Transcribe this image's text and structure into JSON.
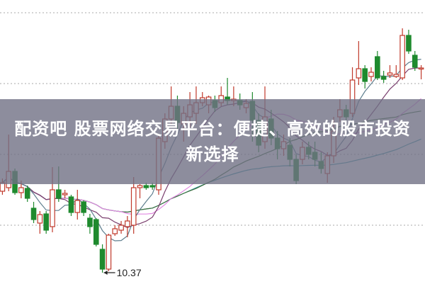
{
  "headline": "配资吧 股票网络交易平台：便捷、高效的股市投资新选择",
  "chart_data": {
    "type": "candlestick",
    "ylim": [
      10.21,
      14.22
    ],
    "grid": {
      "horizontal": true,
      "style": "dotted",
      "levels": [
        14.04,
        13.04,
        12.04,
        11.04
      ]
    },
    "colors": {
      "up": "#c0392b",
      "down": "#1f8a2e",
      "ma5": "#5f7f8f",
      "ma10": "#7a3f6e",
      "ma20": "#e28ae2",
      "ma30": "#3b6e3b",
      "ma60": "#3a9aa8"
    },
    "moving_averages": [
      5,
      10,
      20,
      30,
      60
    ],
    "low_annotation": {
      "label": "10.37",
      "index": 16,
      "value": 10.37
    },
    "candles": [
      [
        11.52,
        11.64,
        11.7,
        11.47
      ],
      [
        11.57,
        11.8,
        12.32,
        11.52
      ],
      [
        11.8,
        11.5,
        11.84,
        11.47
      ],
      [
        11.5,
        11.57,
        11.67,
        11.42
      ],
      [
        11.56,
        11.42,
        11.6,
        11.37
      ],
      [
        11.28,
        11.12,
        11.37,
        11.07
      ],
      [
        11.07,
        11.19,
        11.24,
        10.92
      ],
      [
        11.2,
        10.97,
        11.24,
        10.92
      ],
      [
        11.02,
        11.54,
        11.86,
        10.94
      ],
      [
        11.54,
        11.42,
        11.87,
        11.37
      ],
      [
        11.47,
        11.49,
        11.54,
        11.42
      ],
      [
        11.44,
        11.22,
        11.47,
        11.17
      ],
      [
        11.22,
        11.39,
        11.54,
        11.12
      ],
      [
        11.37,
        11.22,
        11.39,
        11.17
      ],
      [
        11.14,
        11.02,
        11.2,
        10.92
      ],
      [
        11.12,
        10.77,
        11.14,
        10.74
      ],
      [
        10.7,
        10.42,
        10.77,
        10.37
      ],
      [
        10.42,
        10.9,
        10.92,
        10.39
      ],
      [
        10.92,
        10.99,
        11.04,
        10.89
      ],
      [
        10.97,
        11.04,
        11.1,
        10.92
      ],
      [
        11.02,
        11.1,
        11.17,
        10.87
      ],
      [
        11.04,
        11.57,
        11.72,
        10.92
      ],
      [
        11.57,
        11.6,
        11.62,
        11.42
      ],
      [
        11.6,
        11.57,
        11.64,
        11.54
      ],
      [
        11.6,
        11.58,
        11.64,
        11.54
      ],
      [
        11.54,
        12.27,
        12.32,
        11.47
      ],
      [
        12.22,
        12.54,
        12.62,
        12.12
      ],
      [
        12.54,
        12.72,
        13.0,
        12.47
      ],
      [
        12.72,
        12.49,
        12.87,
        12.37
      ],
      [
        12.47,
        12.62,
        12.72,
        12.22
      ],
      [
        12.57,
        12.74,
        12.92,
        12.42
      ],
      [
        12.62,
        12.77,
        13.0,
        12.47
      ],
      [
        12.77,
        12.84,
        12.92,
        12.72
      ],
      [
        12.74,
        12.85,
        12.87,
        12.62
      ],
      [
        12.8,
        12.7,
        12.87,
        12.64
      ],
      [
        12.77,
        12.87,
        13.0,
        12.72
      ],
      [
        12.85,
        12.8,
        13.12,
        12.74
      ],
      [
        12.8,
        12.82,
        13.0,
        12.72
      ],
      [
        12.8,
        12.74,
        12.9,
        12.67
      ],
      [
        12.7,
        12.76,
        12.82,
        12.62
      ],
      [
        12.79,
        12.52,
        12.92,
        12.22
      ],
      [
        12.52,
        12.17,
        12.62,
        12.07
      ],
      [
        12.22,
        12.57,
        13.0,
        12.12
      ],
      [
        12.54,
        12.27,
        12.67,
        12.17
      ],
      [
        12.27,
        12.12,
        12.37,
        11.97
      ],
      [
        12.12,
        12.22,
        12.32,
        12.02
      ],
      [
        12.17,
        11.97,
        12.27,
        11.87
      ],
      [
        11.97,
        11.67,
        12.04,
        11.62
      ],
      [
        11.97,
        12.14,
        12.22,
        11.9
      ],
      [
        12.14,
        12.04,
        12.22,
        11.97
      ],
      [
        12.07,
        11.97,
        12.22,
        11.87
      ],
      [
        11.94,
        11.84,
        12.07,
        11.77
      ],
      [
        11.77,
        12.02,
        12.07,
        11.64
      ],
      [
        12.02,
        12.37,
        12.57,
        11.92
      ],
      [
        12.57,
        12.67,
        12.82,
        12.5
      ],
      [
        12.67,
        12.57,
        12.74,
        12.52
      ],
      [
        12.62,
        13.09,
        13.27,
        12.57
      ],
      [
        13.12,
        13.25,
        13.64,
        13.02
      ],
      [
        13.25,
        13.07,
        13.3,
        12.97
      ],
      [
        13.14,
        13.2,
        13.27,
        13.07
      ],
      [
        13.42,
        13.12,
        13.5,
        13.09
      ],
      [
        13.14,
        13.1,
        13.22,
        13.05
      ],
      [
        13.16,
        13.19,
        13.3,
        13.12
      ],
      [
        13.14,
        13.17,
        13.3,
        13.12
      ],
      [
        13.12,
        13.72,
        13.82,
        13.09
      ],
      [
        13.72,
        13.5,
        13.8,
        13.46
      ],
      [
        13.44,
        13.27,
        13.5,
        13.22
      ],
      [
        13.25,
        13.26,
        13.3,
        13.1
      ]
    ]
  }
}
